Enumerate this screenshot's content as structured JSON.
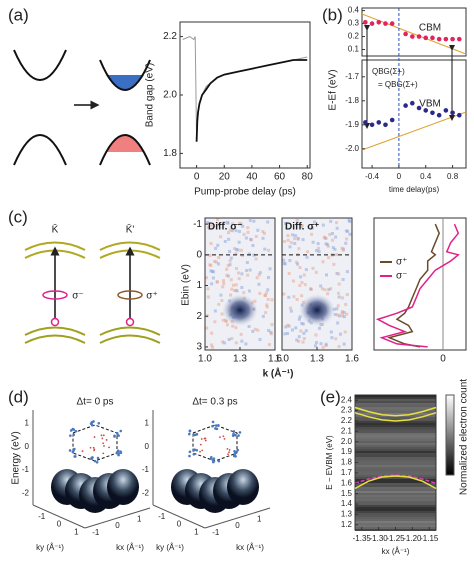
{
  "chart_data": [
    {
      "type": "line",
      "panel": "(a)",
      "xlabel": "Pump-probe delay (ps)",
      "ylabel": "Band gap (eV)",
      "x": [
        -10,
        -5,
        -2,
        -1,
        0,
        0.5,
        1,
        2,
        4,
        7,
        10,
        15,
        20,
        30,
        40,
        50,
        60,
        70,
        80
      ],
      "series": [
        {
          "color": "#9a9a9a",
          "values": [
            2.19,
            2.2,
            2.19,
            2.2,
            1.84,
            1.9,
            1.93,
            1.97,
            2.0,
            2.03,
            2.04,
            2.06,
            2.07,
            2.08,
            2.09,
            2.1,
            2.11,
            2.12,
            2.13
          ]
        },
        {
          "color": "#111111",
          "values": [
            null,
            null,
            null,
            null,
            1.84,
            1.91,
            1.94,
            1.97,
            2.0,
            2.02,
            2.04,
            2.06,
            2.07,
            2.08,
            2.09,
            2.1,
            2.11,
            2.12,
            2.12
          ]
        }
      ],
      "xlim": [
        -12,
        82
      ],
      "ylim": [
        1.75,
        2.25
      ],
      "xticks": [
        0,
        20,
        40,
        60,
        80
      ],
      "yticks": [
        1.8,
        {
          "value": 2,
          "label": "2.0"
        },
        2.2
      ]
    },
    {
      "type": "scatter",
      "panel": "(b)",
      "xlabel": "time delay(ps)",
      "ylabel": "E-Ef (eV)",
      "annotations": [
        "QBG(Σ+)",
        "= QBG(Σ+)"
      ],
      "reference_line": 0,
      "x": [
        -0.5,
        -0.4,
        -0.3,
        -0.2,
        -0.1,
        0.1,
        0.2,
        0.3,
        0.4,
        0.5,
        0.6,
        0.7,
        0.8,
        0.9
      ],
      "series": [
        {
          "name": "CBM",
          "color": "#e0245e",
          "values": [
            0.31,
            0.3,
            0.31,
            0.3,
            0.3,
            0.22,
            0.2,
            0.2,
            0.19,
            0.19,
            0.18,
            0.18,
            0.18,
            0.18
          ]
        },
        {
          "name": "VBM",
          "color": "#2a2a8a",
          "values": [
            -1.89,
            -1.9,
            -1.89,
            -1.9,
            -1.88,
            -1.82,
            -1.81,
            -1.83,
            -1.84,
            -1.85,
            -1.86,
            -1.84,
            -1.85,
            -1.86
          ]
        }
      ],
      "xlim": [
        -0.55,
        1.0
      ],
      "ylim": [
        -2.08,
        0.42
      ],
      "ybreak": [
        -1.63,
        0.05
      ],
      "xticks": [
        -0.4,
        0,
        0.4,
        0.8
      ],
      "yticks": [
        0.4,
        0.3,
        0.2,
        0.1,
        -1.7,
        -1.8,
        -1.9,
        {
          "value": -2,
          "label": "-2.0"
        }
      ]
    },
    {
      "type": "heatmap",
      "panel": "(c)",
      "schematic_labels": [
        "K̄",
        "K̄'",
        "σ⁻",
        "σ⁺"
      ],
      "titles": [
        "Diff. σ⁻",
        "Diff. σ⁺"
      ],
      "xlabel": "k (Å⁻¹)",
      "ylabel": "Ebin (eV)",
      "reference_line": 0,
      "xlim": [
        1.0,
        1.6
      ],
      "ylim": [
        -1.2,
        3.1
      ],
      "xticks": [
        {
          "value": 1,
          "label": "1.0"
        },
        1.3,
        1.6
      ],
      "yticks": [
        -1,
        0,
        1,
        2,
        3
      ]
    },
    {
      "type": "profile",
      "legend": "upper left",
      "y": [
        -1,
        -0.7,
        -0.4,
        -0.1,
        0,
        0.2,
        0.5,
        0.8,
        1.1,
        1.4,
        1.7,
        1.9,
        2.1,
        2.3,
        2.5,
        2.7,
        2.9,
        3.0
      ],
      "series": [
        {
          "name": "σ⁺",
          "color": "#6b4a2a",
          "values": [
            -0.1,
            -0.05,
            -0.1,
            -0.15,
            -0.1,
            -0.2,
            -0.2,
            -0.3,
            -0.35,
            -0.4,
            -0.45,
            -0.5,
            -0.6,
            -0.45,
            -0.4,
            -0.7,
            -0.5,
            -0.3
          ]
        },
        {
          "name": "σ⁻",
          "color": "#e0218a",
          "values": [
            0.15,
            0.2,
            0.1,
            0.05,
            0.2,
            0.1,
            -0.1,
            -0.2,
            -0.3,
            -0.35,
            -0.4,
            -0.6,
            -0.85,
            -0.7,
            -0.5,
            -0.8,
            -0.6,
            -0.2
          ]
        }
      ],
      "xlim": [
        -0.9,
        0.3
      ],
      "ylim": [
        -1.2,
        3.1
      ],
      "xticks": [
        0
      ]
    },
    {
      "type": "surface",
      "panel": "(d)",
      "titles": [
        "Δt= 0 ps",
        "Δt= 0.3 ps"
      ],
      "zlabel": "Energy (eV)",
      "ylabel": "ky (Å⁻¹)",
      "xlabel": "kx (Å⁻¹)",
      "zlim": [
        -2.5,
        1.5
      ],
      "zticks": [
        1,
        0,
        -1,
        -2
      ],
      "klim": [
        -1.5,
        1.5
      ],
      "kticks": [
        -1,
        0,
        1
      ]
    },
    {
      "type": "image",
      "panel": "(e)",
      "xlabel": "kx (Å⁻¹)",
      "ylabel": "E − EVBM (eV)",
      "colorbar_label": "Normalized electron count",
      "x": [
        -1.37,
        -1.33,
        -1.29,
        -1.25,
        -1.21,
        -1.17,
        -1.13
      ],
      "series": [
        {
          "color": "#e8e040",
          "values": [
            2.33,
            2.29,
            2.26,
            2.25,
            2.26,
            2.29,
            2.33
          ]
        },
        {
          "color": "#e8e040",
          "values": [
            2.28,
            2.24,
            2.21,
            2.2,
            2.21,
            2.24,
            2.28
          ]
        },
        {
          "color": "#e040c0",
          "values": [
            1.6,
            1.64,
            1.67,
            1.68,
            1.67,
            1.64,
            1.6
          ]
        },
        {
          "color": "#e8e040",
          "values": [
            1.55,
            1.62,
            1.66,
            1.67,
            1.66,
            1.62,
            1.55
          ]
        }
      ],
      "xlim": [
        -1.37,
        -1.13
      ],
      "ylim": [
        1.15,
        2.45
      ],
      "xticks": [
        -1.35,
        {
          "value": -1.3,
          "label": "-1.30"
        },
        -1.25,
        {
          "value": -1.2,
          "label": "-1.20"
        },
        -1.15
      ],
      "yticks": [
        1.2,
        1.3,
        1.4,
        1.5,
        1.6,
        1.7,
        1.8,
        1.9,
        {
          "value": 2,
          "label": "2.0"
        },
        2.1,
        2.2,
        2.3,
        2.4
      ]
    }
  ]
}
